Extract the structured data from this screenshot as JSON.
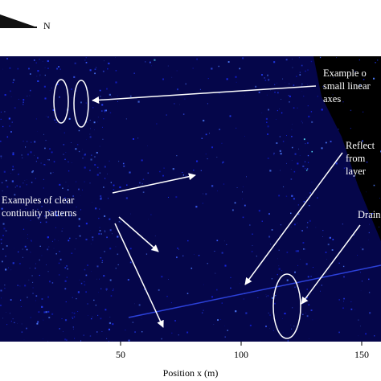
{
  "chart_data": {
    "type": "image",
    "north_label": "N",
    "x_label": "Position x (m)",
    "xlim": [
      0,
      158
    ],
    "xticks": [
      50,
      100,
      150
    ],
    "annotations": [
      {
        "lines": [
          "Example o",
          "small linear",
          "axes"
        ]
      },
      {
        "lines": [
          "Reflect",
          "from",
          "layer"
        ]
      },
      {
        "lines": [
          "Examples of clear",
          "continuity patterns"
        ]
      },
      {
        "lines": [
          "Drain"
        ]
      }
    ]
  }
}
